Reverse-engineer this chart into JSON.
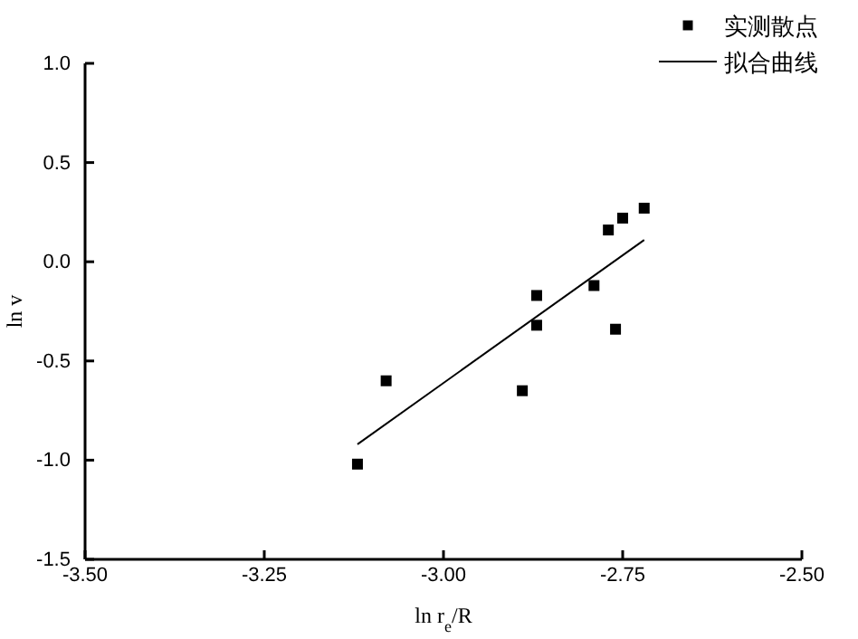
{
  "chart_data": {
    "type": "scatter",
    "xlabel": "ln r$_{e}$/R",
    "ylabel": "ln v",
    "xlim": [
      -3.5,
      -2.5
    ],
    "ylim": [
      -1.5,
      1.0
    ],
    "xticks": [
      {
        "value": -3.5,
        "label": "-3.50"
      },
      {
        "value": -3.25,
        "label": "-3.25"
      },
      {
        "value": -3,
        "label": "-3.00"
      },
      {
        "value": -2.75,
        "label": "-2.75"
      },
      {
        "value": -2.5,
        "label": "-2.50"
      }
    ],
    "yticks": [
      {
        "value": -1.5,
        "label": "-1.5"
      },
      {
        "value": -1,
        "label": "-1.0"
      },
      {
        "value": -0.5,
        "label": "-0.5"
      },
      {
        "value": 0,
        "label": "0.0"
      },
      {
        "value": 0.5,
        "label": "0.5"
      },
      {
        "value": 1,
        "label": "1.0"
      }
    ],
    "grid": false,
    "legend": "top right",
    "series": [
      {
        "name": "实测散点",
        "color": "#000000",
        "marker": "square",
        "x": [
          -3.12,
          -3.08,
          -2.89,
          -2.87,
          -2.87,
          -2.79,
          -2.76,
          -2.77,
          -2.75,
          -2.72
        ],
        "values": [
          -1.02,
          -0.6,
          -0.65,
          -0.17,
          -0.32,
          -0.12,
          -0.34,
          0.16,
          0.22,
          0.27
        ]
      },
      {
        "name": "拟合曲线",
        "type": "line",
        "color": "#000000",
        "marker": "none",
        "x": [
          -3.12,
          -2.72
        ],
        "values": [
          -0.92,
          0.11
        ]
      }
    ]
  }
}
